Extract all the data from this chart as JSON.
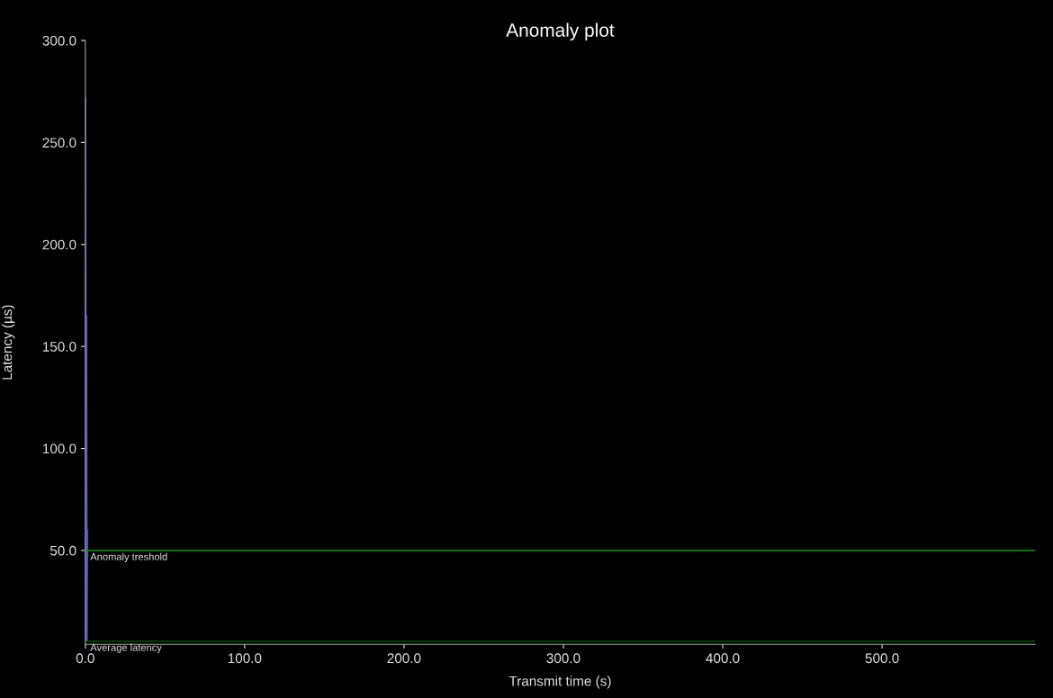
{
  "chart_data": {
    "type": "line",
    "title": "Anomaly plot",
    "xlabel": "Transmit time (s)",
    "ylabel": "Latency (µs)",
    "series": [
      {
        "color": "#5050c0",
        "x": [
          0,
          0.3,
          0.6,
          0.9,
          1.2,
          1.5
        ],
        "values": [
          5.5,
          272,
          6,
          165,
          5.5,
          60
        ]
      }
    ],
    "xlim": [
      0,
      596
    ],
    "ylim": [
      4,
      300
    ],
    "xticks": [
      {
        "value": 0,
        "label": "0.0"
      },
      {
        "value": 100,
        "label": "100.0"
      },
      {
        "value": 200,
        "label": "200.0"
      },
      {
        "value": 300,
        "label": "300.0"
      },
      {
        "value": 400,
        "label": "400.0"
      },
      {
        "value": 500,
        "label": "500.0"
      }
    ],
    "yticks": [
      {
        "value": 50,
        "label": "50.0"
      },
      {
        "value": 100,
        "label": "100.0"
      },
      {
        "value": 150,
        "label": "150.0"
      },
      {
        "value": 200,
        "label": "200.0"
      },
      {
        "value": 250,
        "label": "250.0"
      },
      {
        "value": 300,
        "label": "300.0"
      }
    ],
    "ref_lines": [
      {
        "axis": "y",
        "value": 50,
        "label": "Anomaly treshold",
        "color": "#00a000"
      },
      {
        "axis": "y",
        "value": 5.5,
        "label": "Average latency",
        "color": "#006000"
      }
    ],
    "grid": false,
    "legend": false,
    "marker": "none",
    "line_style": "solid"
  }
}
